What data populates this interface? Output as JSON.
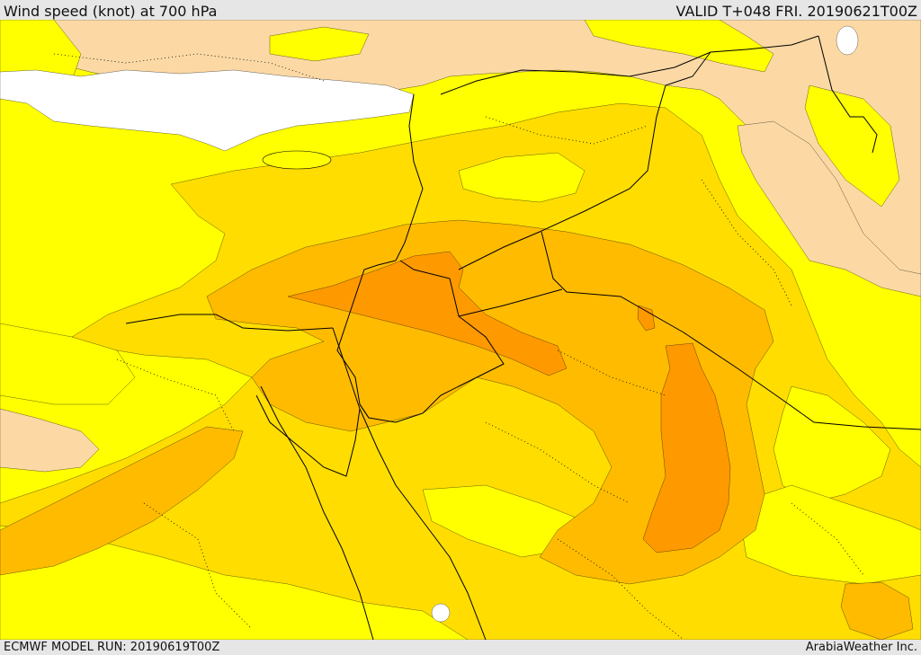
{
  "header": {
    "title": "Wind speed (knot) at 700 hPa",
    "valid": "VALID T+048 FRI. 20190621T00Z"
  },
  "footer": {
    "model_run": "ECMWF MODEL RUN: 20190619T00Z",
    "brand": "ArabiaWeather Inc."
  },
  "map": {
    "colors": {
      "sea_white": "#ffffff",
      "band_low": "#fcd9a4",
      "band_yellow": "#ffff00",
      "band_gold": "#ffdd00",
      "band_amber": "#ffbb00",
      "band_orange": "#ff9900",
      "boundary": "#000000"
    }
  }
}
